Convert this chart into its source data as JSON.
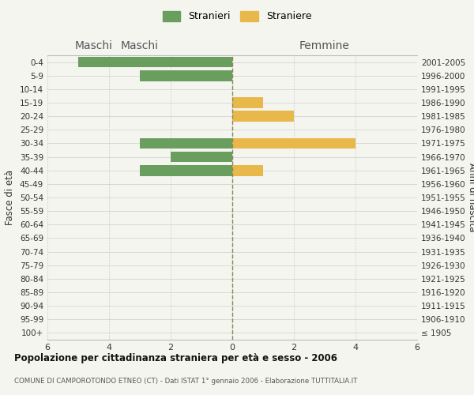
{
  "age_groups": [
    "100+",
    "95-99",
    "90-94",
    "85-89",
    "80-84",
    "75-79",
    "70-74",
    "65-69",
    "60-64",
    "55-59",
    "50-54",
    "45-49",
    "40-44",
    "35-39",
    "30-34",
    "25-29",
    "20-24",
    "15-19",
    "10-14",
    "5-9",
    "0-4"
  ],
  "birth_years": [
    "≤ 1905",
    "1906-1910",
    "1911-1915",
    "1916-1920",
    "1921-1925",
    "1926-1930",
    "1931-1935",
    "1936-1940",
    "1941-1945",
    "1946-1950",
    "1951-1955",
    "1956-1960",
    "1961-1965",
    "1966-1970",
    "1971-1975",
    "1976-1980",
    "1981-1985",
    "1986-1990",
    "1991-1995",
    "1996-2000",
    "2001-2005"
  ],
  "maschi": [
    0,
    0,
    0,
    0,
    0,
    0,
    0,
    0,
    0,
    0,
    0,
    0,
    3,
    2,
    3,
    0,
    0,
    0,
    0,
    3,
    5
  ],
  "femmine": [
    0,
    0,
    0,
    0,
    0,
    0,
    0,
    0,
    0,
    0,
    0,
    0,
    1,
    0,
    4,
    0,
    2,
    1,
    0,
    0,
    0
  ],
  "color_maschi": "#6a9e5e",
  "color_femmine": "#e8b84b",
  "title": "Popolazione per cittadinanza straniera per età e sesso - 2006",
  "subtitle": "COMUNE DI CAMPOROTONDO ETNEO (CT) - Dati ISTAT 1° gennaio 2006 - Elaborazione TUTTITALIA.IT",
  "xlabel_left": "Maschi",
  "xlabel_right": "Femmine",
  "ylabel_left": "Fasce di età",
  "ylabel_right": "Anni di nascita",
  "legend_maschi": "Stranieri",
  "legend_femmine": "Straniere",
  "xlim": 6,
  "background_color": "#f5f5f0",
  "grid_color": "#cccccc",
  "bar_height": 0.8
}
